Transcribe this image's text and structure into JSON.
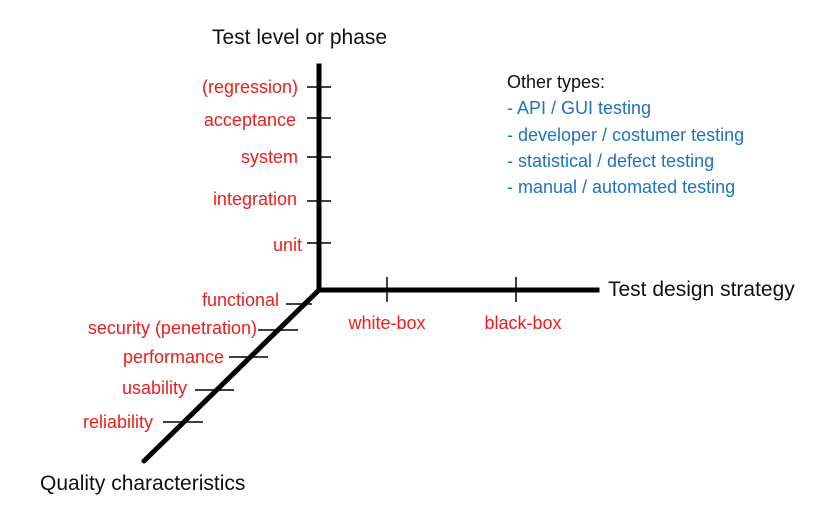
{
  "axes": {
    "vertical_title": "Test level or phase",
    "horizontal_title": "Test design strategy",
    "diagonal_title": "Quality characteristics"
  },
  "levels": [
    "(regression)",
    "acceptance",
    "system",
    "integration",
    "unit"
  ],
  "strategies": [
    "white-box",
    "black-box"
  ],
  "quality": [
    "functional",
    "security (penetration)",
    "performance",
    "usability",
    "reliability"
  ],
  "other_types": {
    "title": "Other types:",
    "items": [
      "- API / GUI testing",
      "- developer / costumer testing",
      "- statistical / defect testing",
      "- manual / automated testing"
    ]
  },
  "colors": {
    "axis": "#000000",
    "label_red": "#ee1c1c",
    "label_blue": "#1f72c0",
    "text_dark": "#111111"
  }
}
